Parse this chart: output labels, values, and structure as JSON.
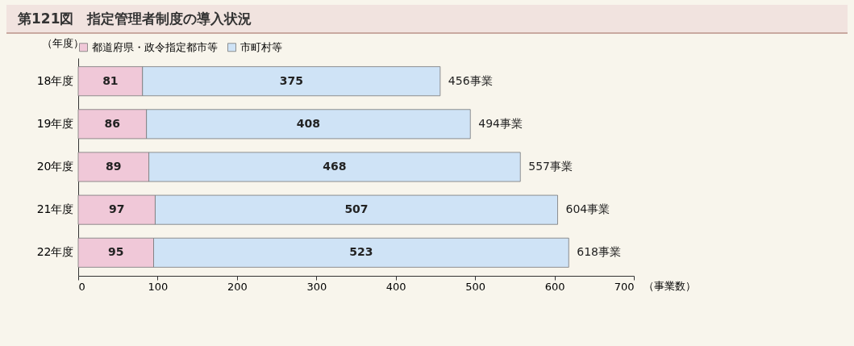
{
  "chart_data": {
    "type": "bar",
    "orientation": "horizontal",
    "stacked": true,
    "title": "第121図　指定管理者制度の導入状況",
    "ylabel": "（年度）",
    "xlabel": "（事業数）",
    "categories": [
      "18年度",
      "19年度",
      "20年度",
      "21年度",
      "22年度"
    ],
    "series": [
      {
        "name": "都道府県・政令指定都市等",
        "color": "#f0c8d8",
        "values": [
          81,
          86,
          89,
          97,
          95
        ]
      },
      {
        "name": "市町村等",
        "color": "#cfe3f6",
        "values": [
          375,
          408,
          468,
          507,
          523
        ]
      }
    ],
    "totals": [
      "456事業",
      "494事業",
      "557事業",
      "604事業",
      "618事業"
    ],
    "data_labels": true,
    "xlim": [
      0,
      700
    ],
    "xticks": [
      0,
      100,
      200,
      300,
      400,
      500,
      600,
      700
    ],
    "grid": false,
    "legend": "top left"
  }
}
